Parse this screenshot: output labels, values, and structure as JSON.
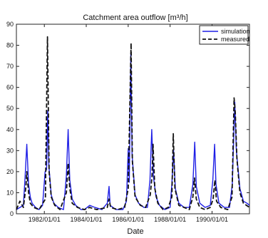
{
  "chart_data": {
    "type": "line",
    "title": "Catchment area outflow [m³/h]",
    "xlabel": "Date",
    "ylabel": "",
    "xlim": [
      "1980-09-01",
      "1991-10-15"
    ],
    "ylim": [
      0,
      90
    ],
    "grid": false,
    "legend_position": "top-right",
    "x_ticks": [
      "1982-01-01",
      "1984-01-01",
      "1986-01-01",
      "1988-01-01",
      "1990-01-01"
    ],
    "x_tick_labels": [
      "1982/01/01",
      "1984/01/01",
      "1986/01/01",
      "1988/01/01",
      "1990/01/01"
    ],
    "y_ticks": [
      0,
      10,
      20,
      30,
      40,
      50,
      60,
      70,
      80,
      90
    ],
    "y_tick_labels": [
      "0",
      "10",
      "20",
      "30",
      "40",
      "50",
      "60",
      "70",
      "80",
      "90"
    ],
    "series": [
      {
        "name": "simulation",
        "color": "#1f1fe6",
        "style": "solid",
        "points": [
          [
            "1980-09-01",
            2
          ],
          [
            "1980-11-01",
            3
          ],
          [
            "1981-01-01",
            4
          ],
          [
            "1981-02-01",
            18
          ],
          [
            "1981-03-01",
            33
          ],
          [
            "1981-04-01",
            14
          ],
          [
            "1981-05-01",
            8
          ],
          [
            "1981-06-01",
            5
          ],
          [
            "1981-08-01",
            3
          ],
          [
            "1981-10-01",
            2
          ],
          [
            "1981-12-01",
            4
          ],
          [
            "1982-01-15",
            20
          ],
          [
            "1982-02-10",
            21
          ],
          [
            "1982-03-01",
            49
          ],
          [
            "1982-03-20",
            23
          ],
          [
            "1982-05-01",
            9
          ],
          [
            "1982-06-15",
            5
          ],
          [
            "1982-09-01",
            3
          ],
          [
            "1982-12-01",
            2
          ],
          [
            "1983-01-20",
            18
          ],
          [
            "1983-02-20",
            40
          ],
          [
            "1983-03-20",
            16
          ],
          [
            "1983-05-01",
            7
          ],
          [
            "1983-07-01",
            4
          ],
          [
            "1983-10-01",
            2
          ],
          [
            "1983-12-01",
            2
          ],
          [
            "1984-03-01",
            4
          ],
          [
            "1984-06-01",
            3
          ],
          [
            "1984-10-01",
            2
          ],
          [
            "1985-01-01",
            5
          ],
          [
            "1985-02-01",
            13
          ],
          [
            "1985-02-20",
            4
          ],
          [
            "1985-06-01",
            2
          ],
          [
            "1985-10-01",
            2
          ],
          [
            "1985-12-01",
            6
          ],
          [
            "1986-01-01",
            31
          ],
          [
            "1986-01-20",
            15
          ],
          [
            "1986-02-15",
            76
          ],
          [
            "1986-03-10",
            28
          ],
          [
            "1986-05-01",
            9
          ],
          [
            "1986-07-01",
            5
          ],
          [
            "1986-10-01",
            3
          ],
          [
            "1986-12-01",
            3
          ],
          [
            "1987-01-15",
            16
          ],
          [
            "1987-02-15",
            40
          ],
          [
            "1987-03-15",
            18
          ],
          [
            "1987-05-01",
            8
          ],
          [
            "1987-07-01",
            4
          ],
          [
            "1987-10-01",
            2
          ],
          [
            "1988-01-01",
            3
          ],
          [
            "1988-02-01",
            14
          ],
          [
            "1988-03-01",
            30
          ],
          [
            "1988-04-01",
            12
          ],
          [
            "1988-06-01",
            5
          ],
          [
            "1988-09-01",
            3
          ],
          [
            "1988-12-01",
            3
          ],
          [
            "1989-02-01",
            14
          ],
          [
            "1989-03-05",
            34
          ],
          [
            "1989-04-01",
            13
          ],
          [
            "1989-06-01",
            5
          ],
          [
            "1989-09-01",
            3
          ],
          [
            "1989-12-01",
            4
          ],
          [
            "1990-01-15",
            16
          ],
          [
            "1990-02-15",
            33
          ],
          [
            "1990-03-10",
            14
          ],
          [
            "1990-05-01",
            5
          ],
          [
            "1990-08-01",
            3
          ],
          [
            "1990-11-01",
            3
          ],
          [
            "1990-12-20",
            14
          ],
          [
            "1991-02-01",
            53
          ],
          [
            "1991-03-01",
            30
          ],
          [
            "1991-05-01",
            12
          ],
          [
            "1991-07-01",
            6
          ],
          [
            "1991-09-01",
            5
          ],
          [
            "1991-10-15",
            4
          ]
        ]
      },
      {
        "name": "measured",
        "color": "#111111",
        "style": "dashed",
        "points": [
          [
            "1980-09-01",
            2
          ],
          [
            "1980-11-01",
            6
          ],
          [
            "1981-01-01",
            3
          ],
          [
            "1981-02-15",
            13
          ],
          [
            "1981-03-01",
            20
          ],
          [
            "1981-04-01",
            10
          ],
          [
            "1981-05-01",
            5
          ],
          [
            "1981-07-01",
            3
          ],
          [
            "1981-10-01",
            2
          ],
          [
            "1982-01-20",
            7
          ],
          [
            "1982-02-25",
            84
          ],
          [
            "1982-03-25",
            20
          ],
          [
            "1982-05-01",
            8
          ],
          [
            "1982-07-01",
            4
          ],
          [
            "1982-10-01",
            2
          ],
          [
            "1983-01-20",
            10
          ],
          [
            "1983-02-20",
            24
          ],
          [
            "1983-03-20",
            12
          ],
          [
            "1983-05-01",
            5
          ],
          [
            "1983-08-01",
            3
          ],
          [
            "1983-12-01",
            2
          ],
          [
            "1984-03-01",
            3
          ],
          [
            "1984-07-01",
            2
          ],
          [
            "1985-01-01",
            3
          ],
          [
            "1985-02-01",
            7
          ],
          [
            "1985-03-01",
            3
          ],
          [
            "1985-07-01",
            2
          ],
          [
            "1985-11-01",
            3
          ],
          [
            "1986-01-01",
            12
          ],
          [
            "1986-02-20",
            81
          ],
          [
            "1986-03-15",
            25
          ],
          [
            "1986-05-01",
            8
          ],
          [
            "1986-08-01",
            4
          ],
          [
            "1986-11-01",
            3
          ],
          [
            "1987-01-20",
            9
          ],
          [
            "1987-02-20",
            18
          ],
          [
            "1987-03-10",
            33
          ],
          [
            "1987-04-10",
            12
          ],
          [
            "1987-06-01",
            5
          ],
          [
            "1987-09-01",
            2
          ],
          [
            "1987-12-01",
            3
          ],
          [
            "1988-02-01",
            8
          ],
          [
            "1988-02-25",
            38
          ],
          [
            "1988-03-25",
            12
          ],
          [
            "1988-06-01",
            4
          ],
          [
            "1988-09-01",
            3
          ],
          [
            "1988-12-01",
            2
          ],
          [
            "1989-02-01",
            8
          ],
          [
            "1989-03-01",
            17
          ],
          [
            "1989-04-01",
            7
          ],
          [
            "1989-06-01",
            3
          ],
          [
            "1989-09-01",
            2
          ],
          [
            "1989-12-01",
            3
          ],
          [
            "1990-01-20",
            7
          ],
          [
            "1990-02-20",
            16
          ],
          [
            "1990-03-20",
            6
          ],
          [
            "1990-06-01",
            3
          ],
          [
            "1990-10-01",
            2
          ],
          [
            "1990-12-15",
            8
          ],
          [
            "1991-01-20",
            55
          ],
          [
            "1991-02-10",
            48
          ],
          [
            "1991-03-10",
            26
          ],
          [
            "1991-05-01",
            10
          ],
          [
            "1991-07-01",
            5
          ],
          [
            "1991-10-15",
            3
          ]
        ]
      }
    ]
  }
}
